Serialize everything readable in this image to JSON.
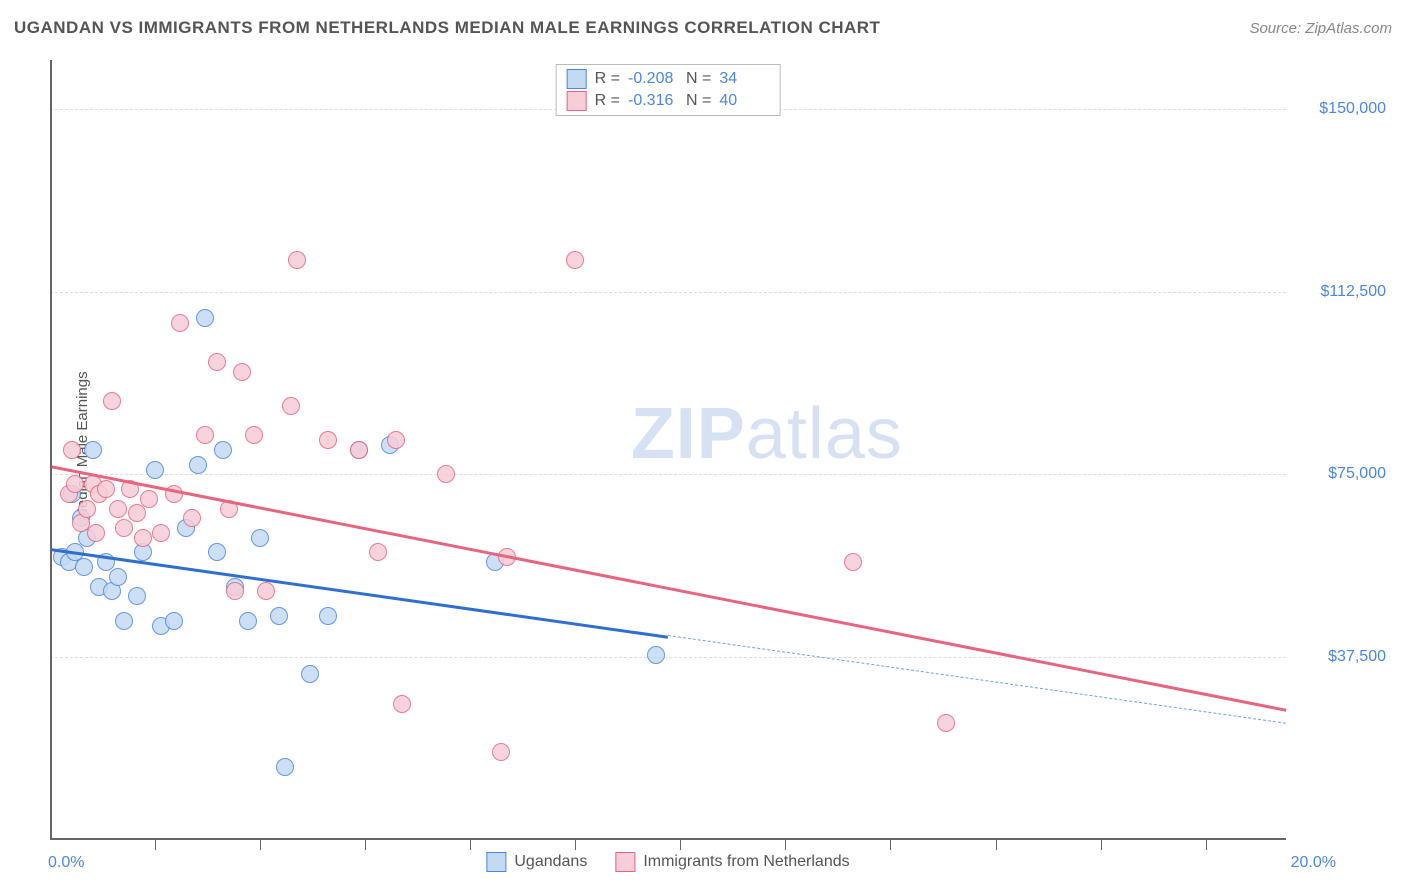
{
  "title": "UGANDAN VS IMMIGRANTS FROM NETHERLANDS MEDIAN MALE EARNINGS CORRELATION CHART",
  "source": "Source: ZipAtlas.com",
  "y_axis_label": "Median Male Earnings",
  "watermark": {
    "bold": "ZIP",
    "rest": "atlas"
  },
  "chart": {
    "type": "scatter",
    "background_color": "#ffffff",
    "grid_color": "#dcdcdc",
    "axis_color": "#666666",
    "xlim": [
      0,
      20
    ],
    "ylim": [
      0,
      160000
    ],
    "x_ticks": [
      1.7,
      3.4,
      5.1,
      6.8,
      8.5,
      10.2,
      11.9,
      13.6,
      15.3,
      17.0,
      18.7
    ],
    "x_min_label": "0.0%",
    "x_max_label": "20.0%",
    "y_gridlines": [
      {
        "value": 37500,
        "label": "$37,500"
      },
      {
        "value": 75000,
        "label": "$75,000"
      },
      {
        "value": 112500,
        "label": "$112,500"
      },
      {
        "value": 150000,
        "label": "$150,000"
      }
    ],
    "series": [
      {
        "name": "Ugandans",
        "fill": "#c4daf3",
        "stroke": "#4a86e8",
        "marker_radius": 9,
        "marker_opacity": 0.85,
        "R_label": "R =",
        "R_value": "-0.208",
        "N_label": "N =",
        "N_value": "34",
        "trend": {
          "x1": 0,
          "y1": 60000,
          "x2": 10,
          "y2": 42000,
          "solid_color": "#2f6fd0",
          "solid_width": 3,
          "dash_to_x": 20,
          "dash_to_y": 24000,
          "dash_color": "#6fa0e8",
          "dash_width": 1.5
        },
        "points": [
          {
            "x": 0.2,
            "y": 58000
          },
          {
            "x": 0.3,
            "y": 57000
          },
          {
            "x": 0.35,
            "y": 71000
          },
          {
            "x": 0.4,
            "y": 59000
          },
          {
            "x": 0.5,
            "y": 66000
          },
          {
            "x": 0.55,
            "y": 56000
          },
          {
            "x": 0.6,
            "y": 62000
          },
          {
            "x": 0.7,
            "y": 80000
          },
          {
            "x": 0.8,
            "y": 52000
          },
          {
            "x": 0.9,
            "y": 57000
          },
          {
            "x": 1.0,
            "y": 51000
          },
          {
            "x": 1.1,
            "y": 54000
          },
          {
            "x": 1.2,
            "y": 45000
          },
          {
            "x": 1.4,
            "y": 50000
          },
          {
            "x": 1.5,
            "y": 59000
          },
          {
            "x": 1.7,
            "y": 76000
          },
          {
            "x": 1.8,
            "y": 44000
          },
          {
            "x": 2.0,
            "y": 45000
          },
          {
            "x": 2.2,
            "y": 64000
          },
          {
            "x": 2.4,
            "y": 77000
          },
          {
            "x": 2.5,
            "y": 107000
          },
          {
            "x": 2.7,
            "y": 59000
          },
          {
            "x": 2.8,
            "y": 80000
          },
          {
            "x": 3.0,
            "y": 52000
          },
          {
            "x": 3.2,
            "y": 45000
          },
          {
            "x": 3.4,
            "y": 62000
          },
          {
            "x": 3.7,
            "y": 46000
          },
          {
            "x": 3.8,
            "y": 15000
          },
          {
            "x": 4.2,
            "y": 34000
          },
          {
            "x": 4.5,
            "y": 46000
          },
          {
            "x": 5.0,
            "y": 80000
          },
          {
            "x": 5.5,
            "y": 81000
          },
          {
            "x": 7.2,
            "y": 57000
          },
          {
            "x": 9.8,
            "y": 38000
          }
        ]
      },
      {
        "name": "Immigrants from Netherlands",
        "fill": "#f6cdd8",
        "stroke": "#e8647f",
        "marker_radius": 9,
        "marker_opacity": 0.85,
        "R_label": "R =",
        "R_value": "-0.316",
        "N_label": "N =",
        "N_value": "40",
        "trend": {
          "x1": 0,
          "y1": 77000,
          "x2": 20,
          "y2": 27000,
          "solid_color": "#e8647f",
          "solid_width": 3
        },
        "points": [
          {
            "x": 0.3,
            "y": 71000
          },
          {
            "x": 0.35,
            "y": 80000
          },
          {
            "x": 0.4,
            "y": 73000
          },
          {
            "x": 0.5,
            "y": 65000
          },
          {
            "x": 0.6,
            "y": 68000
          },
          {
            "x": 0.7,
            "y": 73000
          },
          {
            "x": 0.75,
            "y": 63000
          },
          {
            "x": 0.8,
            "y": 71000
          },
          {
            "x": 0.9,
            "y": 72000
          },
          {
            "x": 1.0,
            "y": 90000
          },
          {
            "x": 1.1,
            "y": 68000
          },
          {
            "x": 1.2,
            "y": 64000
          },
          {
            "x": 1.3,
            "y": 72000
          },
          {
            "x": 1.4,
            "y": 67000
          },
          {
            "x": 1.5,
            "y": 62000
          },
          {
            "x": 1.6,
            "y": 70000
          },
          {
            "x": 1.8,
            "y": 63000
          },
          {
            "x": 2.0,
            "y": 71000
          },
          {
            "x": 2.1,
            "y": 106000
          },
          {
            "x": 2.3,
            "y": 66000
          },
          {
            "x": 2.5,
            "y": 83000
          },
          {
            "x": 2.7,
            "y": 98000
          },
          {
            "x": 2.9,
            "y": 68000
          },
          {
            "x": 3.0,
            "y": 51000
          },
          {
            "x": 3.1,
            "y": 96000
          },
          {
            "x": 3.3,
            "y": 83000
          },
          {
            "x": 3.5,
            "y": 51000
          },
          {
            "x": 3.9,
            "y": 89000
          },
          {
            "x": 4.0,
            "y": 119000
          },
          {
            "x": 4.5,
            "y": 82000
          },
          {
            "x": 5.0,
            "y": 80000
          },
          {
            "x": 5.3,
            "y": 59000
          },
          {
            "x": 5.6,
            "y": 82000
          },
          {
            "x": 5.7,
            "y": 28000
          },
          {
            "x": 6.4,
            "y": 75000
          },
          {
            "x": 7.3,
            "y": 18000
          },
          {
            "x": 7.4,
            "y": 58000
          },
          {
            "x": 8.5,
            "y": 119000
          },
          {
            "x": 13.0,
            "y": 57000
          },
          {
            "x": 14.5,
            "y": 24000
          }
        ]
      }
    ]
  }
}
